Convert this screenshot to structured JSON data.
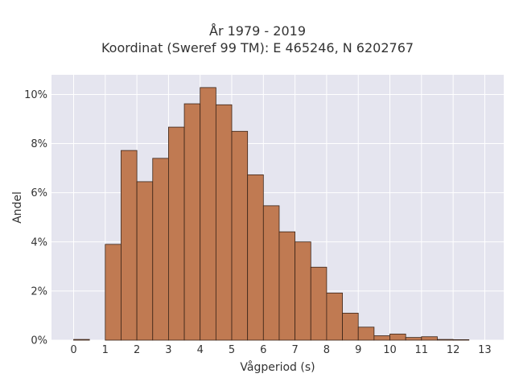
{
  "chart_data": {
    "type": "bar",
    "title": "År 1979 - 2019",
    "subtitle": "Koordinat (Sweref 99 TM): E 465246, N 6202767",
    "xlabel": "Vågperiod (s)",
    "ylabel": "Andel",
    "bin_width": 0.5,
    "bin_starts": [
      0,
      0.5,
      1,
      1.5,
      2,
      2.5,
      3,
      3.5,
      4,
      4.5,
      5,
      5.5,
      6,
      6.5,
      7,
      7.5,
      8,
      8.5,
      9,
      9.5,
      10,
      10.5,
      11,
      11.5,
      12,
      12.5
    ],
    "values": [
      0.03,
      0,
      3.9,
      7.72,
      6.45,
      7.4,
      8.67,
      9.62,
      10.28,
      9.58,
      8.5,
      6.73,
      5.47,
      4.41,
      4.0,
      2.97,
      1.92,
      1.1,
      0.53,
      0.18,
      0.25,
      0.11,
      0.14,
      0.03,
      0.02,
      0
    ],
    "x_ticks": [
      0,
      1,
      2,
      3,
      4,
      5,
      6,
      7,
      8,
      9,
      10,
      11,
      12,
      13
    ],
    "y_ticks": [
      0,
      2,
      4,
      6,
      8,
      10
    ],
    "y_tick_suffix": "%",
    "xlim": [
      -0.7,
      13.6
    ],
    "ylim": [
      0,
      10.8
    ],
    "bar_color": "#c07a52",
    "bar_edge_color": "#3a2418",
    "plot_bg": "#e5e5ef",
    "grid": true,
    "legend": "none"
  }
}
